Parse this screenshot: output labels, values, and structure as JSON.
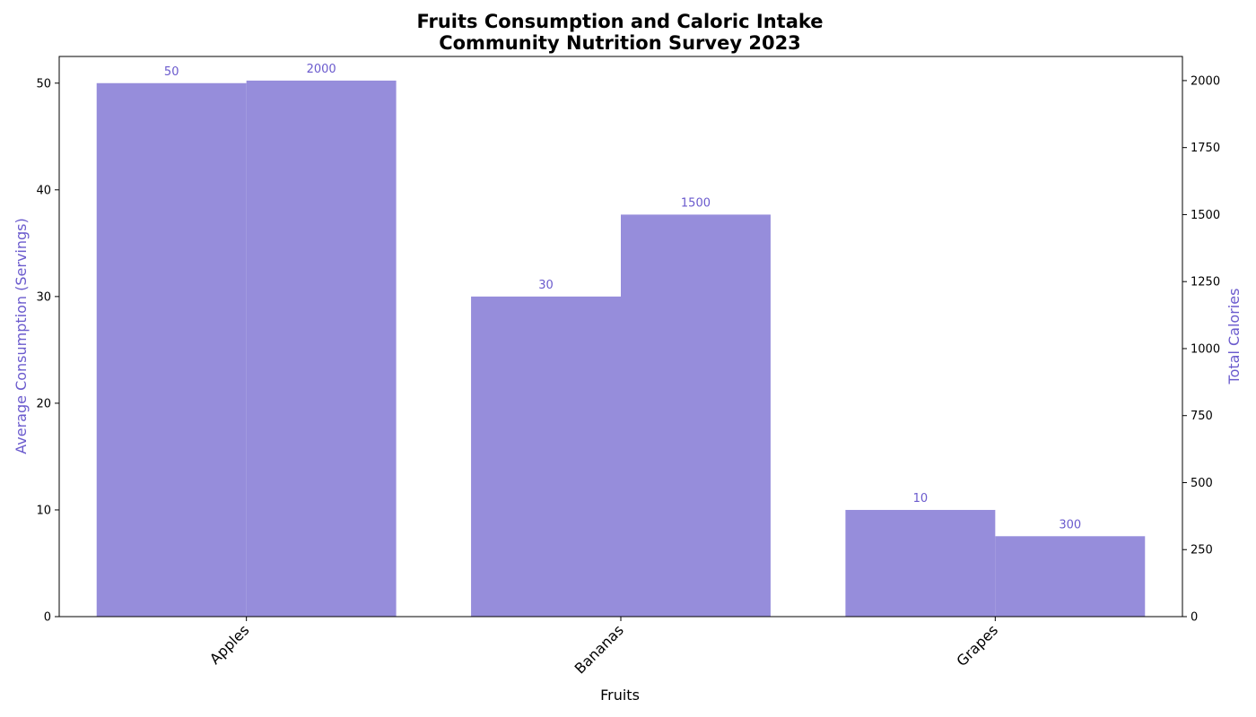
{
  "chart_data": {
    "type": "bar",
    "title": "Fruits Consumption and Caloric Intake",
    "subtitle": "Community Nutrition Survey 2023",
    "xlabel": "Fruits",
    "ylabel_left": "Average Consumption (Servings)",
    "ylabel_right": "Total Calories",
    "categories": [
      "Apples",
      "Bananas",
      "Grapes"
    ],
    "series": [
      {
        "axis": "left",
        "values": [
          50,
          30,
          10
        ]
      },
      {
        "axis": "right",
        "values": [
          2000,
          1500,
          300
        ]
      }
    ],
    "ylim_left": [
      0,
      52.5
    ],
    "ylim_right": [
      0,
      2090
    ],
    "yticks_left": [
      0,
      10,
      20,
      30,
      40,
      50
    ],
    "yticks_right": [
      0,
      250,
      500,
      750,
      1000,
      1250,
      1500,
      1750,
      2000
    ],
    "bar_color": "#968ddb",
    "label_color": "#6a5acd",
    "grid": false,
    "legend": "none"
  }
}
